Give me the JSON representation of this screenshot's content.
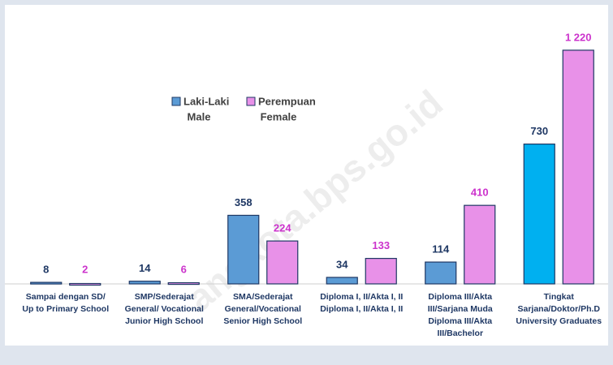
{
  "chart_data": {
    "type": "bar",
    "categories": [
      [
        "Sampai dengan SD/",
        "Up to Primary School"
      ],
      [
        "SMP/Sederajat",
        "General/ Vocational",
        "Junior High School"
      ],
      [
        "SMA/Sederajat",
        "General/Vocational",
        "Senior High School"
      ],
      [
        "Diploma I, II/Akta I, II",
        "Diploma I, II/Akta I, II"
      ],
      [
        "Diploma III/Akta",
        "III/Sarjana Muda",
        "Diploma III/Akta",
        "III/Bachelor"
      ],
      [
        "Tingkat",
        "Sarjana/Doktor/Ph.D",
        "University Graduates"
      ]
    ],
    "series": [
      {
        "name": "Laki-Laki",
        "name_en": "Male",
        "color": "#5b9bd5",
        "colors": [
          "#5b9bd5",
          "#5b9bd5",
          "#5b9bd5",
          "#5b9bd5",
          "#5b9bd5",
          "#00b0f0"
        ],
        "label_color": "#1f3864",
        "values": [
          8,
          14,
          358,
          34,
          114,
          730
        ]
      },
      {
        "name": "Perempuan",
        "name_en": "Female",
        "color": "#e891e8",
        "label_color": "#cc33cc",
        "values": [
          2,
          6,
          224,
          133,
          410,
          1220
        ],
        "value_labels": [
          "2",
          "6",
          "224",
          "133",
          "410",
          "1 220"
        ]
      }
    ],
    "ylim": [
      0,
      1300
    ],
    "watermark": "angkota.bps.go.id"
  }
}
